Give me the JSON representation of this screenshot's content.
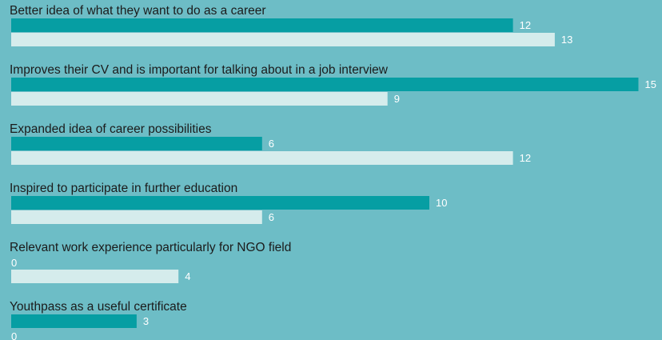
{
  "chart_data": {
    "type": "bar",
    "orientation": "horizontal",
    "title": "",
    "xlabel": "",
    "ylabel": "",
    "xlim": [
      0,
      15
    ],
    "grid": false,
    "legend": "none",
    "categories": [
      "Better idea of what they want to do as a career",
      "Improves their CV and is important for talking about in a job interview",
      "Expanded idea of career possibilities",
      "Inspired to participate in further education",
      "Relevant work experience particularly for NGO field",
      "Youthpass as a useful certificate"
    ],
    "series": [
      {
        "values": [
          12,
          15,
          6,
          10,
          0,
          3
        ],
        "color": "#069ea3"
      },
      {
        "values": [
          13,
          9,
          12,
          6,
          4,
          0
        ],
        "color": "#d5ecec"
      }
    ]
  },
  "colors": {
    "background": "#6dbdc6",
    "label_text": "#1b1b1b",
    "value_text": "#ffffff"
  }
}
